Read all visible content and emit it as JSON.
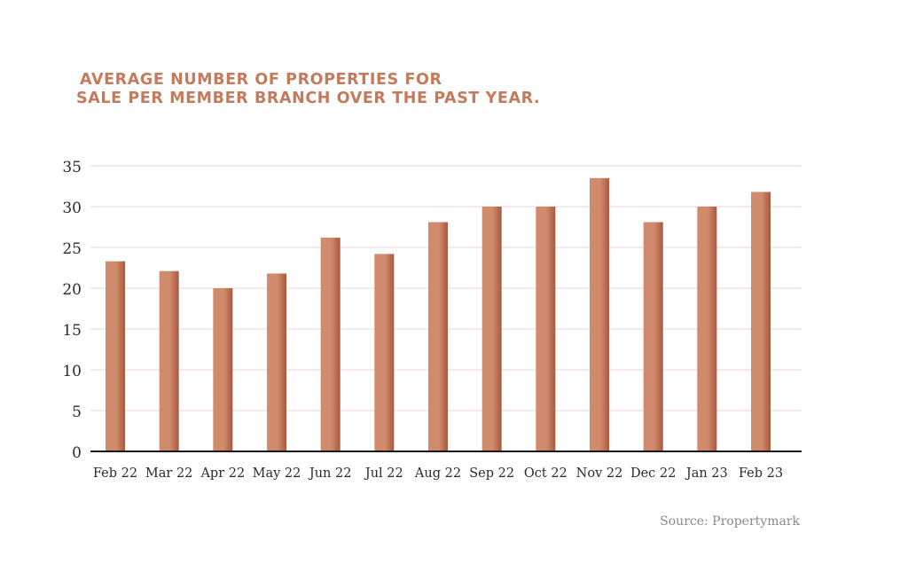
{
  "chart_data": {
    "type": "bar",
    "title_lines": [
      "AVERAGE NUMBER OF PROPERTIES FOR",
      "SALE PER MEMBER BRANCH OVER THE PAST YEAR."
    ],
    "categories": [
      "Feb 22",
      "Mar 22",
      "Apr 22",
      "May 22",
      "Jun 22",
      "Jul 22",
      "Aug 22",
      "Sep 22",
      "Oct 22",
      "Nov 22",
      "Dec 22",
      "Jan 23",
      "Feb 23"
    ],
    "values": [
      23.3,
      22.1,
      20.0,
      21.8,
      26.2,
      24.2,
      28.1,
      30.0,
      30.0,
      33.5,
      28.1,
      30.0,
      31.8
    ],
    "ylim": [
      0,
      35
    ],
    "yticks": [
      0,
      5,
      10,
      15,
      20,
      25,
      30,
      35
    ],
    "xlabel": "",
    "ylabel": "",
    "grid": true,
    "source": "Source: Propertymark"
  },
  "colors": {
    "title": "#c57a5c",
    "bar_light": "#d08a6c",
    "bar_dark": "#a9583d",
    "grid": "#edd6cc",
    "axis": "#1a1a1a",
    "tick_text": "#2b2b2b",
    "source_text": "#8a8a8a"
  }
}
